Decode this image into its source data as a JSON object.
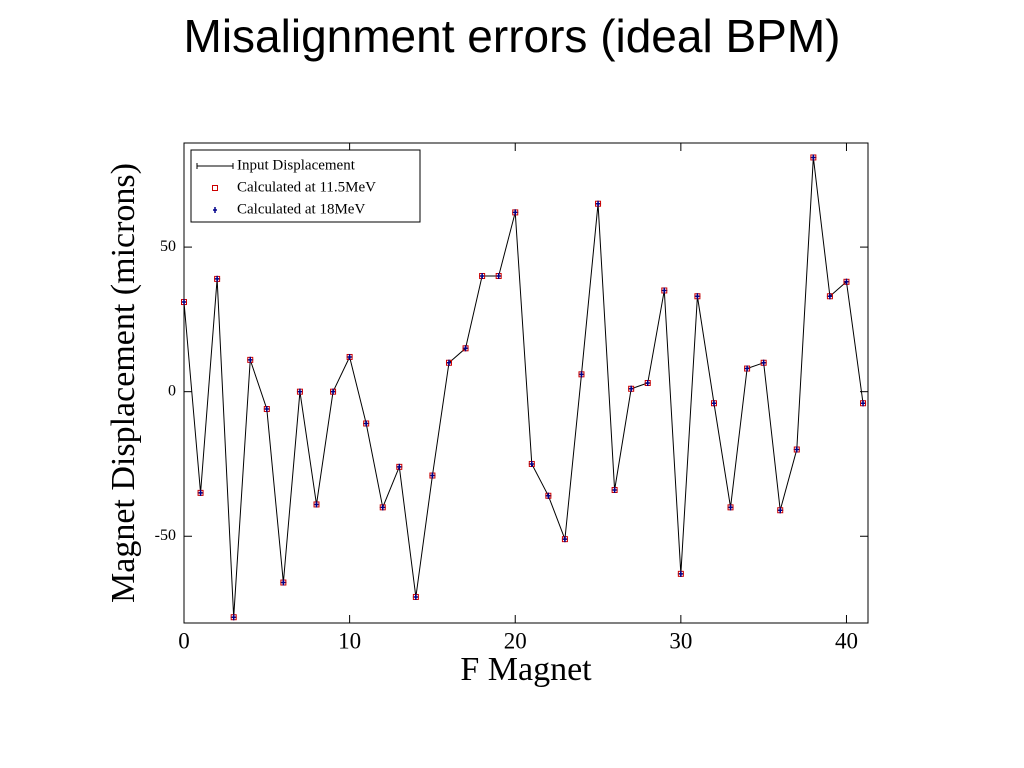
{
  "chart_data": {
    "type": "line",
    "title": "Misalignment errors (ideal BPM)",
    "x_label": "F Magnet",
    "y_label": "Magnet Displacement (microns)",
    "x": [
      0,
      1,
      2,
      3,
      4,
      5,
      6,
      7,
      8,
      9,
      10,
      11,
      12,
      13,
      14,
      15,
      16,
      17,
      18,
      19,
      20,
      21,
      22,
      23,
      24,
      25,
      26,
      27,
      28,
      29,
      30,
      31,
      32,
      33,
      34,
      35,
      36,
      37,
      38,
      39,
      40,
      41
    ],
    "series": [
      {
        "name": "Input Displacement",
        "color": "#000000",
        "marker": "line",
        "values": [
          31,
          -35,
          39,
          -78,
          11,
          -6,
          -66,
          0,
          -39,
          0,
          12,
          -11,
          -40,
          -26,
          -71,
          -29,
          10,
          15,
          40,
          40,
          62,
          -25,
          -36,
          -51,
          6,
          65,
          -34,
          1,
          3,
          35,
          -63,
          33,
          -4,
          -40,
          8,
          10,
          -41,
          -20,
          81,
          33,
          38,
          -4
        ]
      },
      {
        "name": "Calculated at 11.5MeV",
        "color": "#cc0000",
        "marker": "square",
        "values": [
          31,
          -35,
          39,
          -78,
          11,
          -6,
          -66,
          0,
          -39,
          0,
          12,
          -11,
          -40,
          -26,
          -71,
          -29,
          10,
          15,
          40,
          40,
          62,
          -25,
          -36,
          -51,
          6,
          65,
          -34,
          1,
          3,
          35,
          -63,
          33,
          -4,
          -40,
          8,
          10,
          -41,
          -20,
          81,
          33,
          38,
          -4
        ]
      },
      {
        "name": "Calculated at 18MeV",
        "color": "#00008b",
        "marker": "plus",
        "values": [
          31,
          -35,
          39,
          -78,
          11,
          -6,
          -66,
          0,
          -39,
          0,
          12,
          -11,
          -40,
          -26,
          -71,
          -29,
          10,
          15,
          40,
          40,
          62,
          -25,
          -36,
          -51,
          6,
          65,
          -34,
          1,
          3,
          35,
          -63,
          33,
          -4,
          -40,
          8,
          10,
          -41,
          -20,
          81,
          33,
          38,
          -4
        ]
      }
    ],
    "xlim": [
      0,
      41.3
    ],
    "ylim": [
      -80,
      86
    ],
    "xticks": [
      0,
      10,
      20,
      30,
      40
    ],
    "yticks": [
      -50,
      0,
      50
    ],
    "legend": "upper-left"
  }
}
